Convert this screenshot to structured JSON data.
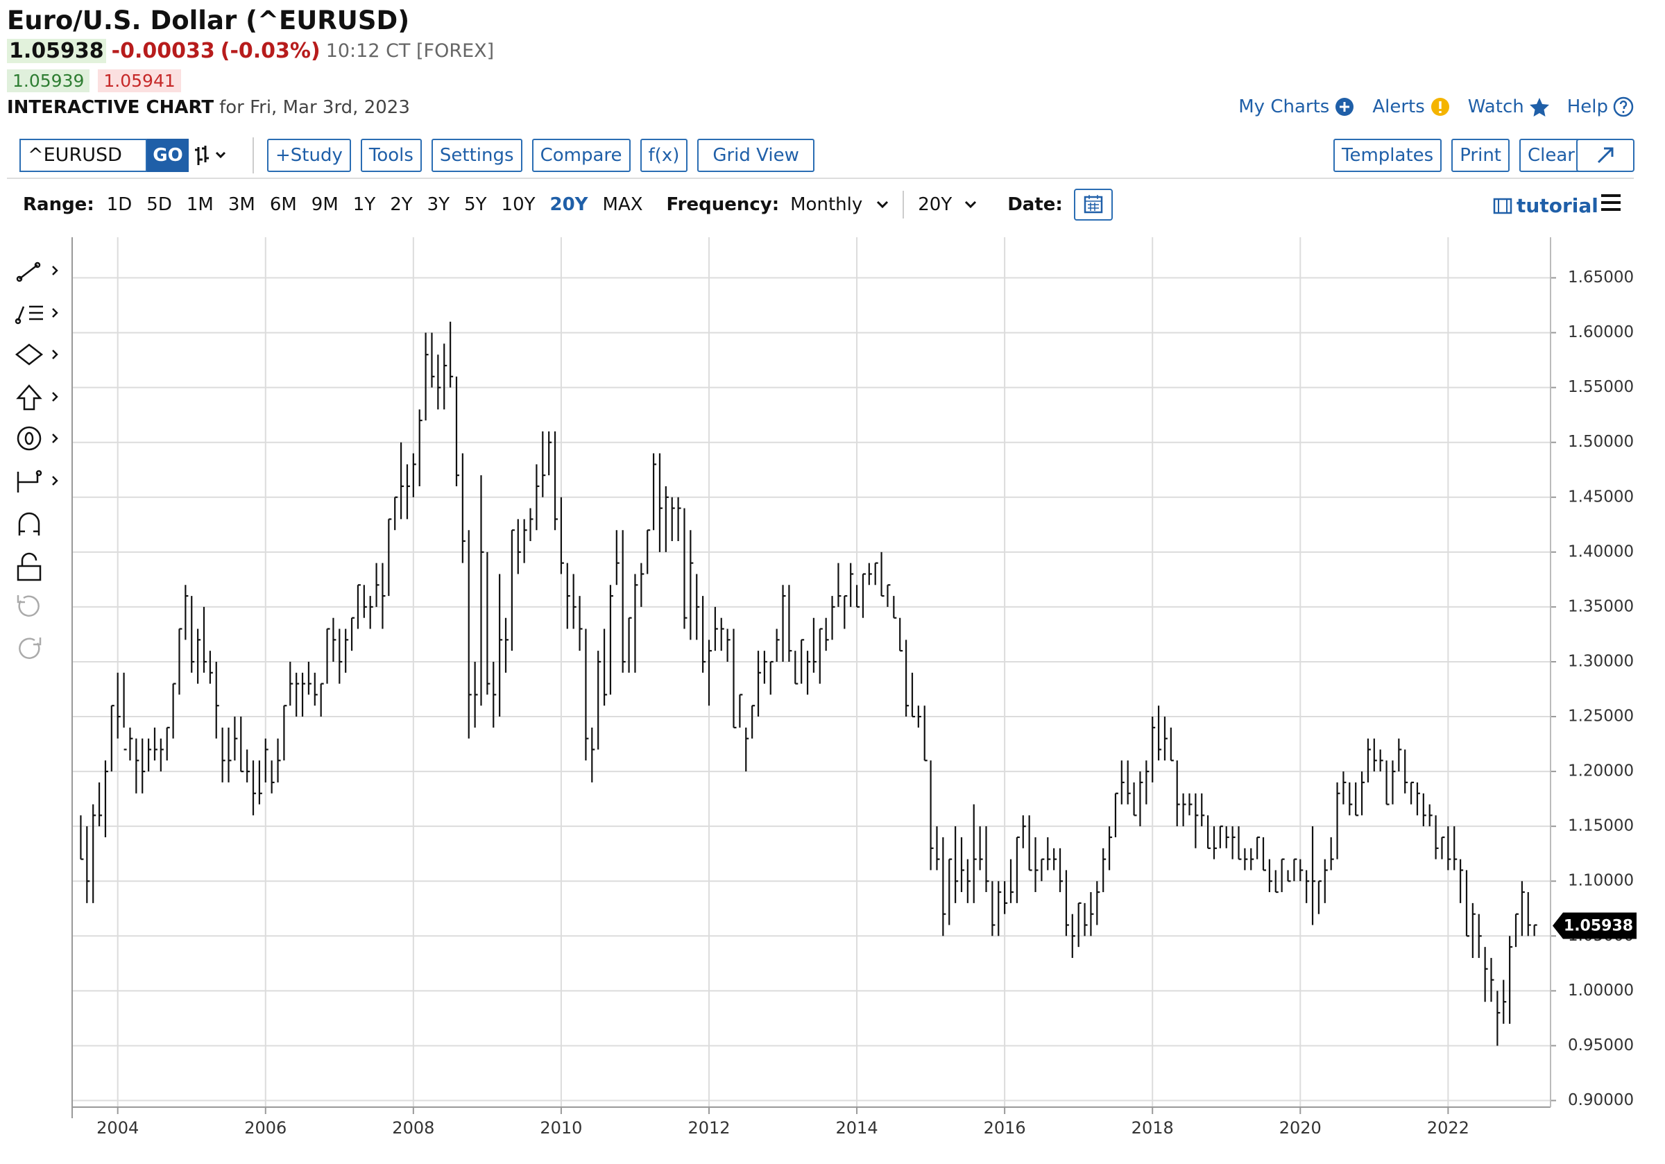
{
  "header": {
    "title": "Euro/U.S. Dollar (^EURUSD)",
    "last": "1.05938",
    "change": "-0.00033",
    "change_pct": "(-0.03%)",
    "time": "10:12 CT [FOREX]",
    "bid": "1.05939",
    "ask": "1.05941",
    "chart_label": "INTERACTIVE CHART",
    "chart_date": "for Fri, Mar 3rd, 2023"
  },
  "nav": [
    "My Charts",
    "Alerts",
    "Watch",
    "Help"
  ],
  "toolbar": {
    "symbol": "^EURUSD",
    "go": "GO",
    "left_buttons": [
      "+Study",
      "Tools",
      "Settings",
      "Compare",
      "f(x)",
      "Grid View"
    ],
    "right_buttons": [
      "Templates",
      "Print",
      "Clear"
    ]
  },
  "range_bar": {
    "range_label": "Range:",
    "ranges": [
      "1D",
      "5D",
      "1M",
      "3M",
      "6M",
      "9M",
      "1Y",
      "2Y",
      "3Y",
      "5Y",
      "10Y",
      "20Y",
      "MAX"
    ],
    "active_range": "20Y",
    "frequency_label": "Frequency:",
    "frequency": "Monthly",
    "period": "20Y",
    "date_label": "Date:",
    "tutorial": "tutorial"
  },
  "chart_data": {
    "type": "hlc",
    "color": "#111111",
    "grid": true,
    "categories": [
      null,
      null,
      null,
      null,
      null,
      null,
      "2004",
      null,
      null,
      null,
      null,
      null,
      null,
      null,
      null,
      null,
      null,
      null,
      null,
      null,
      null,
      null,
      null,
      null,
      null,
      null,
      null,
      null,
      null,
      null,
      "2006",
      null,
      null,
      null,
      null,
      null,
      null,
      null,
      null,
      null,
      null,
      null,
      null,
      null,
      null,
      null,
      null,
      null,
      null,
      null,
      null,
      null,
      null,
      null,
      "2008",
      null,
      null,
      null,
      null,
      null,
      null,
      null,
      null,
      null,
      null,
      null,
      null,
      null,
      null,
      null,
      null,
      null,
      null,
      null,
      null,
      null,
      null,
      null,
      "2010",
      null,
      null,
      null,
      null,
      null,
      null,
      null,
      null,
      null,
      null,
      null,
      null,
      null,
      null,
      null,
      null,
      null,
      null,
      null,
      null,
      null,
      null,
      null,
      "2012",
      null,
      null,
      null,
      null,
      null,
      null,
      null,
      null,
      null,
      null,
      null,
      null,
      null,
      null,
      null,
      null,
      null,
      null,
      null,
      null,
      null,
      null,
      null,
      "2014",
      null,
      null,
      null,
      null,
      null,
      null,
      null,
      null,
      null,
      null,
      null,
      null,
      null,
      null,
      null,
      null,
      null,
      null,
      null,
      null,
      null,
      null,
      null,
      "2016",
      null,
      null,
      null,
      null,
      null,
      null,
      null,
      null,
      null,
      null,
      null,
      null,
      null,
      null,
      null,
      null,
      null,
      null,
      null,
      null,
      null,
      null,
      null,
      "2018",
      null,
      null,
      null,
      null,
      null,
      null,
      null,
      null,
      null,
      null,
      null,
      null,
      null,
      null,
      null,
      null,
      null,
      null,
      null,
      null,
      null,
      null,
      null,
      "2020",
      null,
      null,
      null,
      null,
      null,
      null,
      null,
      null,
      null,
      null,
      null,
      null,
      null,
      null,
      null,
      null,
      null,
      null,
      null,
      null,
      null,
      null,
      null,
      "2022",
      null,
      null,
      null,
      null,
      null,
      null,
      null,
      null,
      null,
      null,
      null,
      null,
      null,
      null
    ],
    "high": [
      1.16,
      1.15,
      1.17,
      1.19,
      1.21,
      1.26,
      1.29,
      1.29,
      1.24,
      1.23,
      1.23,
      1.23,
      1.24,
      1.23,
      1.24,
      1.28,
      1.33,
      1.37,
      1.36,
      1.33,
      1.35,
      1.31,
      1.3,
      1.24,
      1.24,
      1.25,
      1.25,
      1.22,
      1.21,
      1.21,
      1.23,
      1.21,
      1.23,
      1.26,
      1.3,
      1.29,
      1.29,
      1.3,
      1.29,
      1.28,
      1.33,
      1.34,
      1.33,
      1.33,
      1.34,
      1.37,
      1.37,
      1.36,
      1.39,
      1.39,
      1.43,
      1.45,
      1.5,
      1.48,
      1.49,
      1.53,
      1.6,
      1.6,
      1.58,
      1.59,
      1.61,
      1.56,
      1.49,
      1.42,
      1.3,
      1.47,
      1.4,
      1.3,
      1.38,
      1.34,
      1.42,
      1.43,
      1.43,
      1.44,
      1.48,
      1.51,
      1.51,
      1.51,
      1.45,
      1.39,
      1.38,
      1.36,
      1.33,
      1.24,
      1.31,
      1.33,
      1.37,
      1.42,
      1.42,
      1.34,
      1.38,
      1.39,
      1.42,
      1.49,
      1.49,
      1.46,
      1.45,
      1.45,
      1.44,
      1.42,
      1.38,
      1.36,
      1.32,
      1.35,
      1.34,
      1.33,
      1.33,
      1.27,
      1.24,
      1.26,
      1.31,
      1.31,
      1.3,
      1.33,
      1.37,
      1.37,
      1.31,
      1.32,
      1.31,
      1.34,
      1.33,
      1.34,
      1.36,
      1.39,
      1.36,
      1.39,
      1.37,
      1.38,
      1.39,
      1.39,
      1.4,
      1.37,
      1.36,
      1.34,
      1.32,
      1.29,
      1.26,
      1.26,
      1.21,
      1.15,
      1.14,
      1.12,
      1.15,
      1.14,
      1.12,
      1.17,
      1.15,
      1.15,
      1.1,
      1.1,
      1.1,
      1.12,
      1.14,
      1.16,
      1.16,
      1.14,
      1.12,
      1.14,
      1.13,
      1.13,
      1.11,
      1.07,
      1.08,
      1.08,
      1.09,
      1.1,
      1.13,
      1.15,
      1.18,
      1.21,
      1.21,
      1.19,
      1.2,
      1.21,
      1.25,
      1.26,
      1.25,
      1.24,
      1.21,
      1.18,
      1.18,
      1.18,
      1.18,
      1.16,
      1.15,
      1.15,
      1.15,
      1.15,
      1.15,
      1.13,
      1.13,
      1.14,
      1.14,
      1.12,
      1.11,
      1.12,
      1.11,
      1.12,
      1.12,
      1.11,
      1.15,
      1.1,
      1.12,
      1.14,
      1.19,
      1.2,
      1.19,
      1.19,
      1.2,
      1.23,
      1.23,
      1.22,
      1.21,
      1.21,
      1.23,
      1.22,
      1.19,
      1.19,
      1.18,
      1.17,
      1.16,
      1.14,
      1.15,
      1.15,
      1.12,
      1.11,
      1.08,
      1.07,
      1.04,
      1.03,
      1.0,
      1.01,
      1.05,
      1.07,
      1.1,
      1.09,
      1.06
    ],
    "low": [
      1.12,
      1.08,
      1.08,
      1.15,
      1.14,
      1.2,
      1.23,
      1.24,
      1.21,
      1.18,
      1.18,
      1.2,
      1.21,
      1.2,
      1.21,
      1.23,
      1.27,
      1.32,
      1.29,
      1.28,
      1.29,
      1.28,
      1.23,
      1.19,
      1.19,
      1.21,
      1.2,
      1.19,
      1.16,
      1.17,
      1.19,
      1.18,
      1.19,
      1.21,
      1.26,
      1.25,
      1.25,
      1.27,
      1.26,
      1.25,
      1.28,
      1.3,
      1.28,
      1.29,
      1.31,
      1.33,
      1.34,
      1.33,
      1.35,
      1.33,
      1.36,
      1.42,
      1.43,
      1.43,
      1.45,
      1.46,
      1.52,
      1.55,
      1.53,
      1.53,
      1.55,
      1.46,
      1.39,
      1.23,
      1.24,
      1.26,
      1.27,
      1.24,
      1.25,
      1.29,
      1.31,
      1.38,
      1.39,
      1.41,
      1.42,
      1.45,
      1.47,
      1.42,
      1.38,
      1.33,
      1.33,
      1.31,
      1.21,
      1.19,
      1.22,
      1.26,
      1.27,
      1.37,
      1.29,
      1.29,
      1.29,
      1.35,
      1.38,
      1.42,
      1.4,
      1.4,
      1.41,
      1.41,
      1.33,
      1.32,
      1.32,
      1.29,
      1.26,
      1.31,
      1.31,
      1.3,
      1.24,
      1.24,
      1.2,
      1.23,
      1.25,
      1.28,
      1.27,
      1.3,
      1.3,
      1.3,
      1.28,
      1.28,
      1.27,
      1.29,
      1.28,
      1.31,
      1.32,
      1.35,
      1.33,
      1.35,
      1.35,
      1.34,
      1.37,
      1.37,
      1.36,
      1.35,
      1.34,
      1.31,
      1.25,
      1.25,
      1.24,
      1.21,
      1.11,
      1.11,
      1.05,
      1.06,
      1.08,
      1.09,
      1.08,
      1.08,
      1.11,
      1.09,
      1.05,
      1.05,
      1.07,
      1.08,
      1.08,
      1.13,
      1.11,
      1.09,
      1.1,
      1.11,
      1.11,
      1.09,
      1.05,
      1.03,
      1.04,
      1.05,
      1.05,
      1.06,
      1.09,
      1.11,
      1.14,
      1.17,
      1.17,
      1.16,
      1.15,
      1.17,
      1.19,
      1.21,
      1.21,
      1.21,
      1.15,
      1.15,
      1.16,
      1.13,
      1.15,
      1.13,
      1.12,
      1.13,
      1.13,
      1.12,
      1.12,
      1.11,
      1.11,
      1.12,
      1.11,
      1.09,
      1.09,
      1.09,
      1.1,
      1.1,
      1.1,
      1.08,
      1.06,
      1.07,
      1.08,
      1.11,
      1.12,
      1.17,
      1.16,
      1.16,
      1.16,
      1.19,
      1.2,
      1.2,
      1.17,
      1.17,
      1.2,
      1.18,
      1.17,
      1.16,
      1.15,
      1.15,
      1.12,
      1.12,
      1.11,
      1.11,
      1.08,
      1.05,
      1.03,
      1.03,
      0.99,
      0.99,
      0.95,
      0.97,
      0.97,
      1.04,
      1.05,
      1.05,
      1.05
    ],
    "close": [
      1.12,
      1.1,
      1.16,
      1.16,
      1.2,
      1.26,
      1.25,
      1.22,
      1.23,
      1.21,
      1.2,
      1.22,
      1.22,
      1.22,
      1.24,
      1.28,
      1.33,
      1.36,
      1.3,
      1.32,
      1.3,
      1.29,
      1.26,
      1.21,
      1.21,
      1.23,
      1.2,
      1.2,
      1.18,
      1.18,
      1.22,
      1.19,
      1.21,
      1.26,
      1.28,
      1.28,
      1.28,
      1.28,
      1.27,
      1.28,
      1.33,
      1.32,
      1.3,
      1.32,
      1.34,
      1.37,
      1.35,
      1.35,
      1.37,
      1.36,
      1.43,
      1.45,
      1.46,
      1.46,
      1.48,
      1.52,
      1.58,
      1.56,
      1.55,
      1.57,
      1.56,
      1.47,
      1.41,
      1.27,
      1.27,
      1.4,
      1.28,
      1.27,
      1.32,
      1.32,
      1.42,
      1.4,
      1.42,
      1.43,
      1.46,
      1.47,
      1.5,
      1.43,
      1.39,
      1.36,
      1.35,
      1.33,
      1.23,
      1.22,
      1.3,
      1.27,
      1.36,
      1.39,
      1.3,
      1.34,
      1.37,
      1.38,
      1.42,
      1.48,
      1.44,
      1.45,
      1.44,
      1.44,
      1.34,
      1.39,
      1.35,
      1.3,
      1.31,
      1.33,
      1.33,
      1.32,
      1.24,
      1.27,
      1.23,
      1.26,
      1.29,
      1.3,
      1.3,
      1.32,
      1.36,
      1.31,
      1.28,
      1.32,
      1.3,
      1.3,
      1.33,
      1.32,
      1.35,
      1.36,
      1.36,
      1.38,
      1.35,
      1.38,
      1.38,
      1.39,
      1.36,
      1.37,
      1.34,
      1.31,
      1.26,
      1.25,
      1.25,
      1.21,
      1.13,
      1.12,
      1.07,
      1.12,
      1.1,
      1.11,
      1.1,
      1.12,
      1.12,
      1.1,
      1.06,
      1.09,
      1.08,
      1.09,
      1.14,
      1.15,
      1.11,
      1.11,
      1.12,
      1.12,
      1.12,
      1.1,
      1.06,
      1.05,
      1.08,
      1.06,
      1.07,
      1.09,
      1.12,
      1.14,
      1.18,
      1.19,
      1.18,
      1.16,
      1.19,
      1.2,
      1.24,
      1.22,
      1.23,
      1.21,
      1.17,
      1.17,
      1.17,
      1.16,
      1.16,
      1.13,
      1.13,
      1.15,
      1.14,
      1.14,
      1.12,
      1.12,
      1.12,
      1.14,
      1.11,
      1.1,
      1.09,
      1.12,
      1.1,
      1.12,
      1.11,
      1.1,
      1.1,
      1.1,
      1.11,
      1.12,
      1.18,
      1.19,
      1.17,
      1.16,
      1.19,
      1.22,
      1.21,
      1.21,
      1.17,
      1.2,
      1.22,
      1.19,
      1.19,
      1.18,
      1.16,
      1.16,
      1.13,
      1.14,
      1.12,
      1.12,
      1.11,
      1.05,
      1.07,
      1.05,
      1.02,
      1.01,
      0.98,
      0.99,
      1.04,
      1.07,
      1.09,
      1.06,
      1.06
    ],
    "current_price": 1.05938,
    "ylim": [
      0.894,
      1.687
    ],
    "yticks": [
      {
        "value": 0.9,
        "label": "0.90000"
      },
      {
        "value": 0.95,
        "label": "0.95000"
      },
      {
        "value": 1,
        "label": "1.00000"
      },
      {
        "value": 1.05,
        "label": "1.05000"
      },
      {
        "value": 1.1,
        "label": "1.10000"
      },
      {
        "value": 1.15,
        "label": "1.15000"
      },
      {
        "value": 1.2,
        "label": "1.20000"
      },
      {
        "value": 1.25,
        "label": "1.25000"
      },
      {
        "value": 1.3,
        "label": "1.30000"
      },
      {
        "value": 1.35,
        "label": "1.35000"
      },
      {
        "value": 1.4,
        "label": "1.40000"
      },
      {
        "value": 1.45,
        "label": "1.45000"
      },
      {
        "value": 1.5,
        "label": "1.50000"
      },
      {
        "value": 1.55,
        "label": "1.55000"
      },
      {
        "value": 1.6,
        "label": "1.60000"
      },
      {
        "value": 1.65,
        "label": "1.65000"
      }
    ]
  }
}
